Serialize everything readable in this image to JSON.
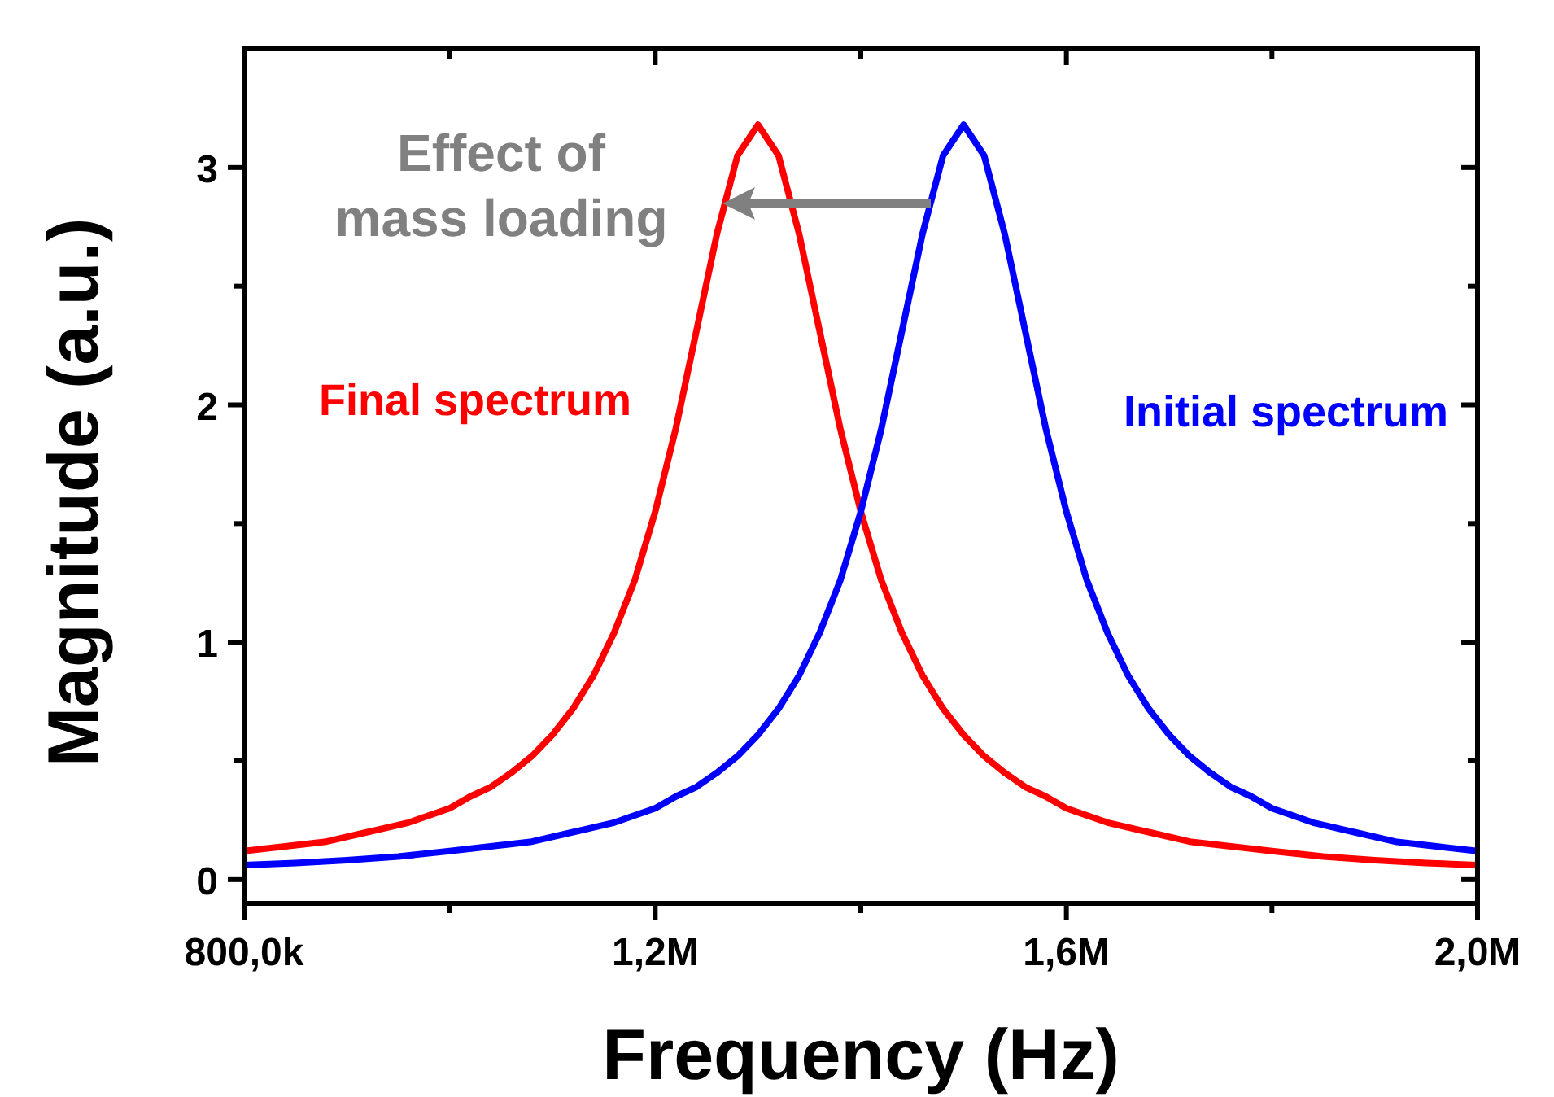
{
  "chart_data": {
    "type": "line",
    "xlabel": "Frequency (Hz)",
    "ylabel": "Magnitude (a.u.)",
    "xlim": [
      800000,
      2000000
    ],
    "xticks": [
      {
        "value": 800000,
        "label": "800,0k"
      },
      {
        "value": 1000000,
        "label": null
      },
      {
        "value": 1200000,
        "label": "1,2M"
      },
      {
        "value": 1400000,
        "label": null
      },
      {
        "value": 1600000,
        "label": "1,6M"
      },
      {
        "value": 1800000,
        "label": null
      },
      {
        "value": 2000000,
        "label": "2,0M"
      }
    ],
    "ylim": [
      -0.1,
      3.5
    ],
    "yticks": [
      0,
      {
        "value": 0.5,
        "label": null
      },
      1,
      {
        "value": 1.5,
        "label": null
      },
      2,
      {
        "value": 2.5,
        "label": null
      },
      3
    ],
    "grid": false,
    "legend": false,
    "marker": "none",
    "line_style": "solid",
    "annotations": [
      "Effect of mass loading"
    ],
    "series": [
      {
        "name": "Final spectrum",
        "color": "#ff0000",
        "x": [
          800000,
          840000,
          880000,
          920000,
          960000,
          1000000,
          1020000,
          1040000,
          1060000,
          1080000,
          1100000,
          1120000,
          1140000,
          1160000,
          1180000,
          1200000,
          1220000,
          1240000,
          1260000,
          1280000,
          1300000,
          1320000,
          1340000,
          1360000,
          1380000,
          1400000,
          1420000,
          1440000,
          1460000,
          1480000,
          1500000,
          1520000,
          1540000,
          1560000,
          1580000,
          1600000,
          1640000,
          1680000,
          1720000,
          1760000,
          1800000,
          1850000,
          1900000,
          1950000,
          2000000
        ],
        "values": [
          0.12,
          0.14,
          0.16,
          0.2,
          0.24,
          0.3,
          0.35,
          0.39,
          0.45,
          0.52,
          0.61,
          0.72,
          0.86,
          1.04,
          1.26,
          1.55,
          1.9,
          2.31,
          2.72,
          3.05,
          3.18,
          3.05,
          2.72,
          2.31,
          1.9,
          1.55,
          1.26,
          1.04,
          0.86,
          0.72,
          0.61,
          0.52,
          0.45,
          0.39,
          0.35,
          0.3,
          0.24,
          0.2,
          0.16,
          0.14,
          0.12,
          0.097,
          0.082,
          0.07,
          0.061
        ]
      },
      {
        "name": "Initial spectrum",
        "color": "#0000ff",
        "x": [
          800000,
          850000,
          900000,
          950000,
          1000000,
          1040000,
          1080000,
          1120000,
          1160000,
          1200000,
          1220000,
          1240000,
          1260000,
          1280000,
          1300000,
          1320000,
          1340000,
          1360000,
          1380000,
          1400000,
          1420000,
          1440000,
          1460000,
          1480000,
          1500000,
          1520000,
          1540000,
          1560000,
          1580000,
          1600000,
          1620000,
          1640000,
          1660000,
          1680000,
          1700000,
          1720000,
          1740000,
          1760000,
          1780000,
          1800000,
          1840000,
          1880000,
          1920000,
          1960000,
          2000000
        ],
        "values": [
          0.061,
          0.07,
          0.082,
          0.097,
          0.12,
          0.14,
          0.16,
          0.2,
          0.24,
          0.3,
          0.35,
          0.39,
          0.45,
          0.52,
          0.61,
          0.72,
          0.86,
          1.04,
          1.26,
          1.55,
          1.9,
          2.31,
          2.72,
          3.05,
          3.18,
          3.05,
          2.72,
          2.31,
          1.9,
          1.55,
          1.26,
          1.04,
          0.86,
          0.72,
          0.61,
          0.52,
          0.45,
          0.39,
          0.35,
          0.3,
          0.24,
          0.2,
          0.16,
          0.14,
          0.12
        ]
      }
    ]
  }
}
